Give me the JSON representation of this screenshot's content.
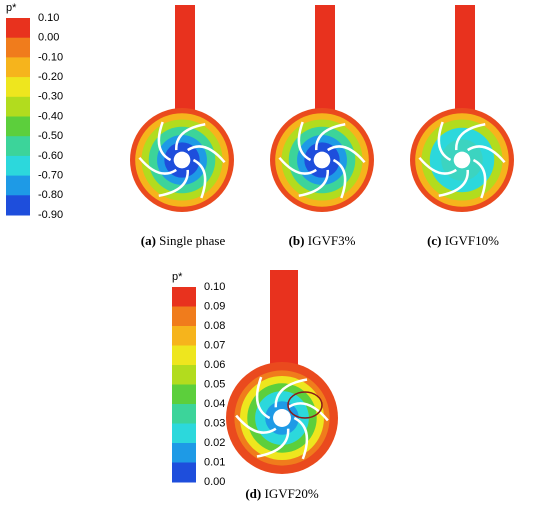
{
  "colorbars": [
    {
      "title": "p*",
      "ticks": [
        "0.10",
        "0.00",
        "-0.10",
        "-0.20",
        "-0.30",
        "-0.40",
        "-0.50",
        "-0.60",
        "-0.70",
        "-0.80",
        "-0.90"
      ]
    },
    {
      "title": "p*",
      "ticks": [
        "0.10",
        "0.09",
        "0.08",
        "0.07",
        "0.06",
        "0.05",
        "0.04",
        "0.03",
        "0.02",
        "0.01",
        "0.00"
      ]
    }
  ],
  "captions": [
    {
      "tag": "(a)",
      "text": "Single phase"
    },
    {
      "tag": "(b)",
      "text": "IGVF3%"
    },
    {
      "tag": "(c)",
      "text": "IGVF10%"
    },
    {
      "tag": "(d)",
      "text": "IGVF20%"
    }
  ]
}
